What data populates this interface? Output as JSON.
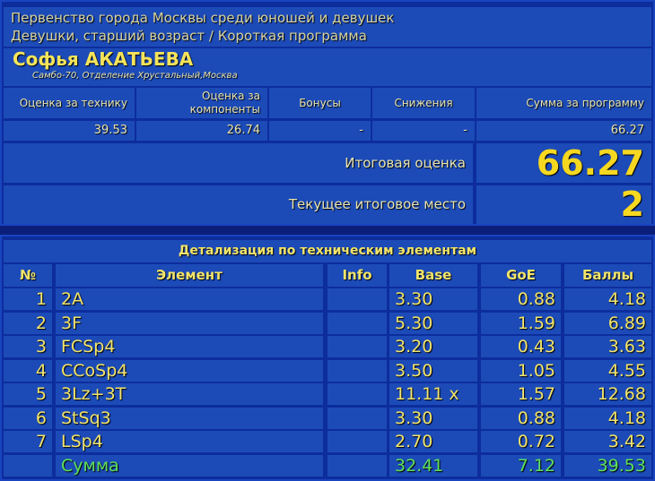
{
  "event": {
    "title": "Первенство города Москвы среди юношей и девушек",
    "category": "Девушки, старший возраст / Короткая программа"
  },
  "skater": {
    "name": "Софья АКАТЬЕВА",
    "club": "Самбо-70, Отделение Хрустальный,Москва"
  },
  "scores": {
    "headers": [
      "Оценка за технику",
      "Оценка за компоненты",
      "Бонусы",
      "Снижения",
      "Сумма за программу"
    ],
    "values": [
      "39.53",
      "26.74",
      "-",
      "-",
      "66.27"
    ],
    "final_label": "Итоговая оценка",
    "final_value": "66.27",
    "place_label": "Текущее итоговое место",
    "place_value": "2"
  },
  "details": {
    "title": "Детализация по техническим элементам",
    "headers": [
      "№",
      "Элемент",
      "Info",
      "Base",
      "GoE",
      "Баллы"
    ],
    "rows": [
      [
        "1",
        "2A",
        "",
        "3.30",
        "0.88",
        "4.18"
      ],
      [
        "2",
        "3F",
        "",
        "5.30",
        "1.59",
        "6.89"
      ],
      [
        "3",
        "FCSp4",
        "",
        "3.20",
        "0.43",
        "3.63"
      ],
      [
        "4",
        "CCoSp4",
        "",
        "3.50",
        "1.05",
        "4.55"
      ],
      [
        "5",
        "3Lz+3T",
        "",
        "11.11 x",
        "1.57",
        "12.68"
      ],
      [
        "6",
        "StSq3",
        "",
        "3.30",
        "0.88",
        "4.18"
      ],
      [
        "7",
        "LSp4",
        "",
        "2.70",
        "0.72",
        "3.42"
      ]
    ],
    "total": [
      "",
      "Сумма",
      "",
      "32.41",
      "7.12",
      "39.53"
    ]
  },
  "colors": {
    "background": "#0d2d9c",
    "cell": "#1c4bb8",
    "value": "#f2e46a",
    "total": "#5fe05a"
  }
}
